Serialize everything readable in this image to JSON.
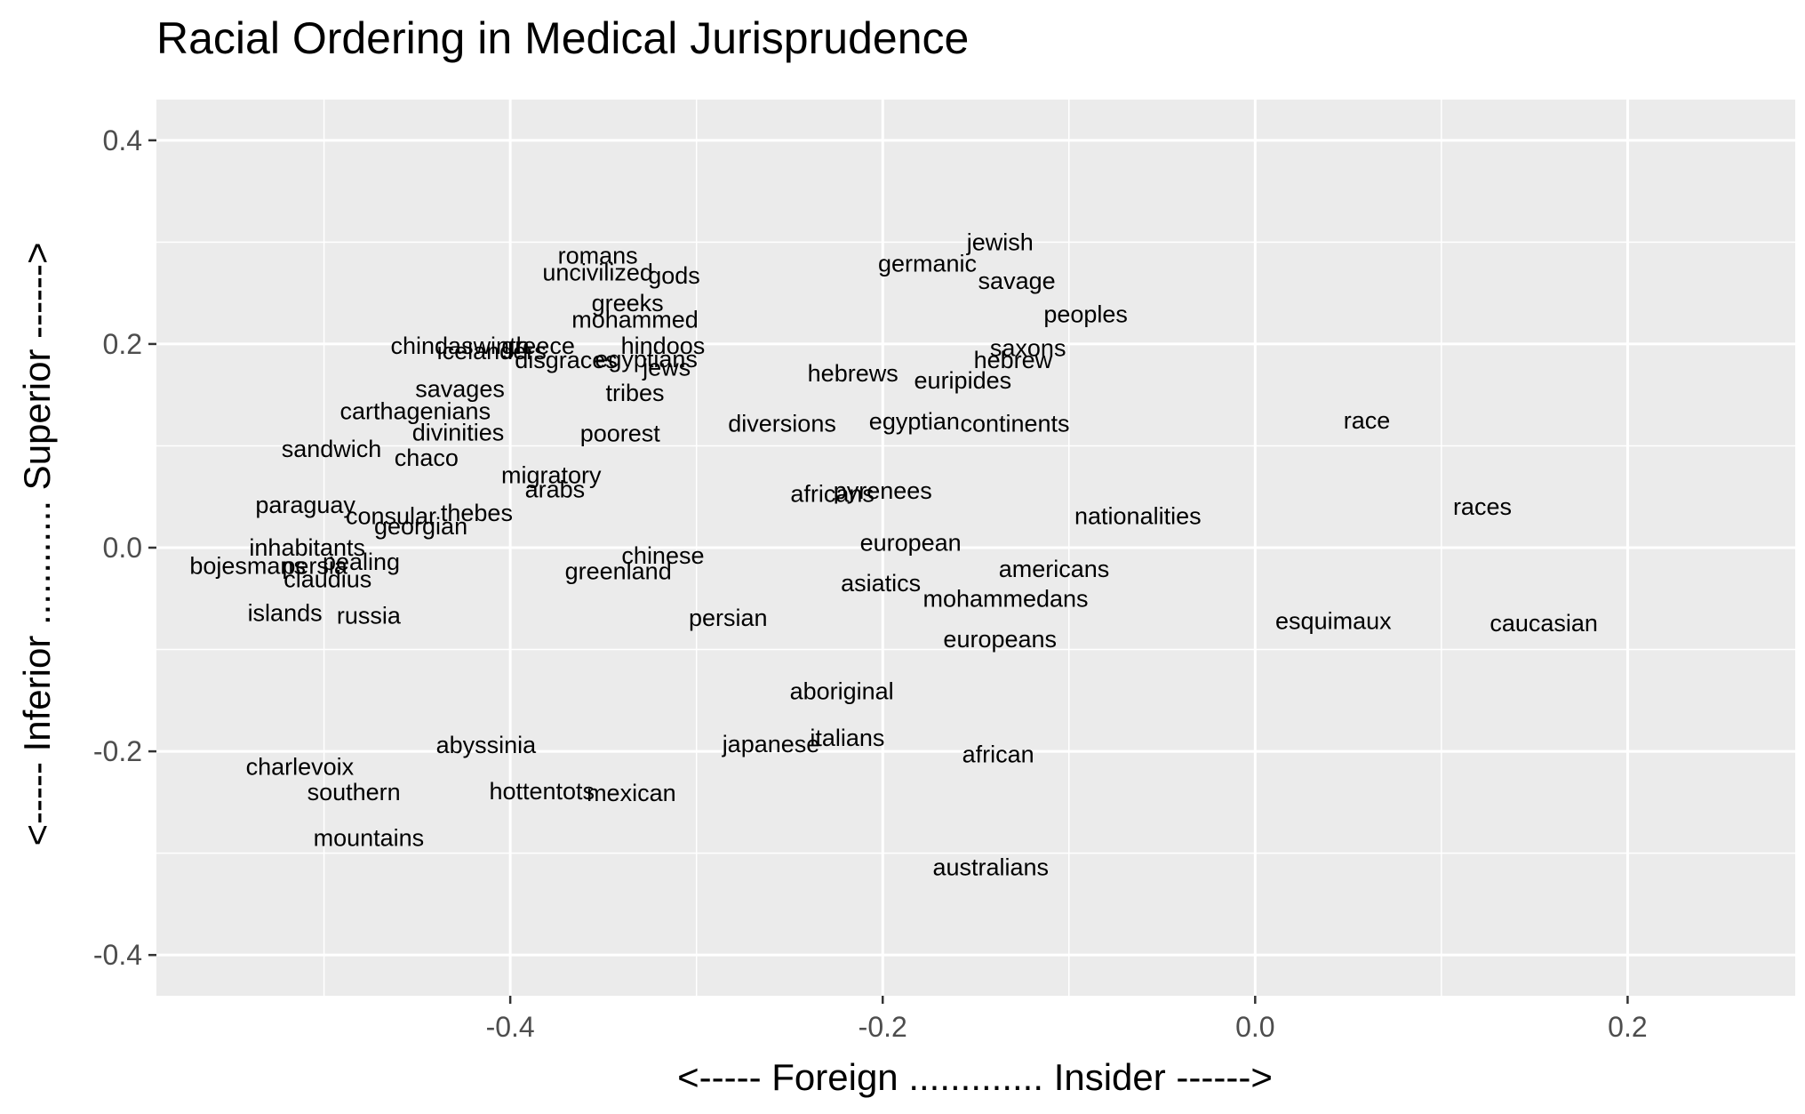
{
  "chart_data": {
    "type": "scatter",
    "title": "Racial Ordering in Medical Jurisprudence",
    "xlabel": "<----- Foreign .............  Insider ------>",
    "ylabel": "<----- Inferior ............  Superior ------>",
    "xlim": [
      -0.59,
      0.29
    ],
    "ylim": [
      -0.44,
      0.44
    ],
    "xticks": [
      -0.4,
      -0.2,
      0.0,
      0.2
    ],
    "xtick_labels": [
      "-0.4",
      "-0.2",
      "0.0",
      "0.2"
    ],
    "yticks": [
      -0.4,
      -0.2,
      0.0,
      0.2,
      0.4
    ],
    "ytick_labels": [
      "-0.4",
      "-0.2",
      "0.0",
      "0.2",
      "0.4"
    ],
    "grid": true,
    "panel_background": "#ebebeb",
    "grid_color": "#ffffff",
    "points": [
      {
        "label": "jewish",
        "x": -0.137,
        "y": 0.3
      },
      {
        "label": "romans",
        "x": -0.353,
        "y": 0.287
      },
      {
        "label": "germanic",
        "x": -0.176,
        "y": 0.279
      },
      {
        "label": "uncivilized",
        "x": -0.353,
        "y": 0.27
      },
      {
        "label": "gods",
        "x": -0.312,
        "y": 0.267
      },
      {
        "label": "savage",
        "x": -0.128,
        "y": 0.262
      },
      {
        "label": "greeks",
        "x": -0.337,
        "y": 0.24
      },
      {
        "label": "peoples",
        "x": -0.091,
        "y": 0.229
      },
      {
        "label": "mohammed",
        "x": -0.333,
        "y": 0.224
      },
      {
        "label": "chindaswinth",
        "x": -0.427,
        "y": 0.198
      },
      {
        "label": "greece",
        "x": -0.385,
        "y": 0.198
      },
      {
        "label": "hindoos",
        "x": -0.318,
        "y": 0.198
      },
      {
        "label": "icelanders",
        "x": -0.41,
        "y": 0.193
      },
      {
        "label": "saxons",
        "x": -0.122,
        "y": 0.196
      },
      {
        "label": "egyptians",
        "x": -0.327,
        "y": 0.185
      },
      {
        "label": "disgraces",
        "x": -0.37,
        "y": 0.184
      },
      {
        "label": "hebrew",
        "x": -0.13,
        "y": 0.184
      },
      {
        "label": "jews",
        "x": -0.316,
        "y": 0.177
      },
      {
        "label": "hebrews",
        "x": -0.216,
        "y": 0.171
      },
      {
        "label": "euripides",
        "x": -0.157,
        "y": 0.164
      },
      {
        "label": "savages",
        "x": -0.427,
        "y": 0.156
      },
      {
        "label": "tribes",
        "x": -0.333,
        "y": 0.152
      },
      {
        "label": "carthagenians",
        "x": -0.451,
        "y": 0.134
      },
      {
        "label": "diversions",
        "x": -0.254,
        "y": 0.122
      },
      {
        "label": "egyptian",
        "x": -0.183,
        "y": 0.124
      },
      {
        "label": "continents",
        "x": -0.129,
        "y": 0.122
      },
      {
        "label": "race",
        "x": 0.06,
        "y": 0.125
      },
      {
        "label": "divinities",
        "x": -0.428,
        "y": 0.113
      },
      {
        "label": "poorest",
        "x": -0.341,
        "y": 0.112
      },
      {
        "label": "sandwich",
        "x": -0.496,
        "y": 0.097
      },
      {
        "label": "chaco",
        "x": -0.445,
        "y": 0.088
      },
      {
        "label": "migratory",
        "x": -0.378,
        "y": 0.071
      },
      {
        "label": "pyrenees",
        "x": -0.2,
        "y": 0.056
      },
      {
        "label": "arabs",
        "x": -0.376,
        "y": 0.057
      },
      {
        "label": "africans",
        "x": -0.227,
        "y": 0.053
      },
      {
        "label": "paraguay",
        "x": -0.51,
        "y": 0.042
      },
      {
        "label": "races",
        "x": 0.122,
        "y": 0.04
      },
      {
        "label": "consular",
        "x": -0.464,
        "y": 0.031
      },
      {
        "label": "thebes",
        "x": -0.418,
        "y": 0.034
      },
      {
        "label": "nationalities",
        "x": -0.063,
        "y": 0.031
      },
      {
        "label": "georgian",
        "x": -0.448,
        "y": 0.021
      },
      {
        "label": "european",
        "x": -0.185,
        "y": 0.005
      },
      {
        "label": "inhabitants",
        "x": -0.509,
        "y": 0.0
      },
      {
        "label": "chinese",
        "x": -0.318,
        "y": -0.008
      },
      {
        "label": "bojesmans",
        "x": -0.541,
        "y": -0.018
      },
      {
        "label": "persia",
        "x": -0.505,
        "y": -0.018
      },
      {
        "label": "pealing",
        "x": -0.48,
        "y": -0.014
      },
      {
        "label": "americans",
        "x": -0.108,
        "y": -0.021
      },
      {
        "label": "greenland",
        "x": -0.342,
        "y": -0.023
      },
      {
        "label": "claudius",
        "x": -0.498,
        "y": -0.031
      },
      {
        "label": "asiatics",
        "x": -0.201,
        "y": -0.035
      },
      {
        "label": "mohammedans",
        "x": -0.134,
        "y": -0.05
      },
      {
        "label": "islands",
        "x": -0.521,
        "y": -0.064
      },
      {
        "label": "russia",
        "x": -0.476,
        "y": -0.067
      },
      {
        "label": "persian",
        "x": -0.283,
        "y": -0.069
      },
      {
        "label": "esquimaux",
        "x": 0.042,
        "y": -0.072
      },
      {
        "label": "caucasian",
        "x": 0.155,
        "y": -0.074
      },
      {
        "label": "europeans",
        "x": -0.137,
        "y": -0.09
      },
      {
        "label": "aboriginal",
        "x": -0.222,
        "y": -0.141
      },
      {
        "label": "italians",
        "x": -0.219,
        "y": -0.187
      },
      {
        "label": "japanese",
        "x": -0.26,
        "y": -0.193
      },
      {
        "label": "abyssinia",
        "x": -0.413,
        "y": -0.194
      },
      {
        "label": "african",
        "x": -0.138,
        "y": -0.203
      },
      {
        "label": "charlevoix",
        "x": -0.513,
        "y": -0.215
      },
      {
        "label": "southern",
        "x": -0.484,
        "y": -0.24
      },
      {
        "label": "hottentots",
        "x": -0.383,
        "y": -0.239
      },
      {
        "label": "mexican",
        "x": -0.335,
        "y": -0.241
      },
      {
        "label": "mountains",
        "x": -0.476,
        "y": -0.285
      },
      {
        "label": "australians",
        "x": -0.142,
        "y": -0.314
      }
    ]
  }
}
